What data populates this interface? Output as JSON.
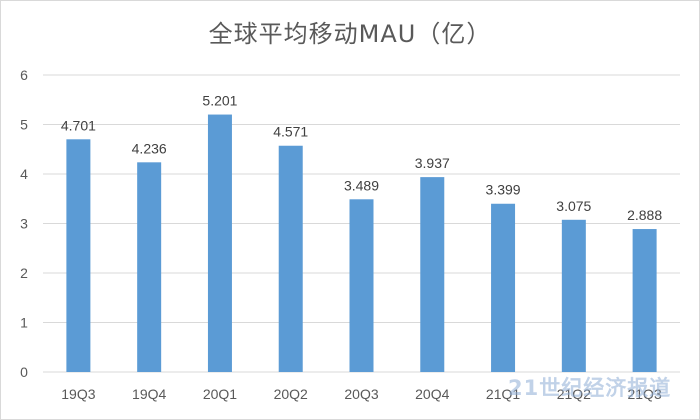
{
  "chart_data": {
    "type": "bar",
    "title": "全球平均移动MAU（亿）",
    "categories": [
      "19Q3",
      "19Q4",
      "20Q1",
      "20Q2",
      "20Q3",
      "20Q4",
      "21Q1",
      "21Q2",
      "21Q3"
    ],
    "values": [
      4.701,
      4.236,
      5.201,
      4.571,
      3.489,
      3.937,
      3.399,
      3.075,
      2.888
    ],
    "data_labels": [
      "4.701",
      "4.236",
      "5.201",
      "4.571",
      "3.489",
      "3.937",
      "3.399",
      "3.075",
      "2.888"
    ],
    "ylim": [
      0,
      6
    ],
    "yticks": [
      "0",
      "1",
      "2",
      "3",
      "4",
      "5",
      "6"
    ],
    "grid": true,
    "legend": "none",
    "bar_color": "#5b9bd5",
    "grid_color": "#d9d9d9"
  },
  "watermark": "21世纪经济报道"
}
